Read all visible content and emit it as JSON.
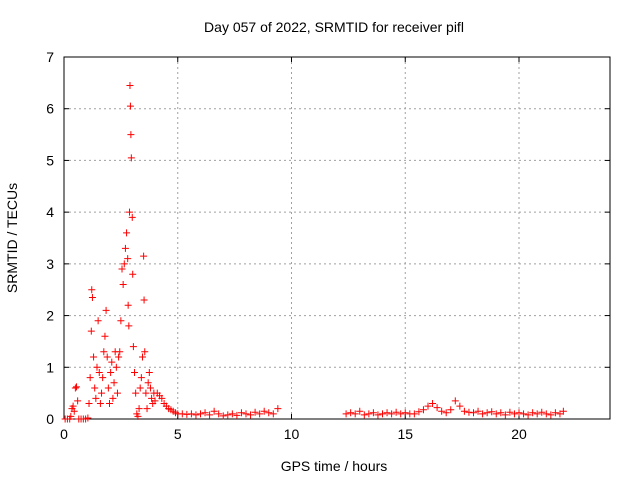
{
  "chart_data": {
    "type": "scatter",
    "title": "Day 057 of 2022, SRMTID for receiver pifl",
    "xlabel": "GPS time / hours",
    "ylabel": "SRMTID / TECUs",
    "xlim": [
      0,
      24
    ],
    "ylim": [
      0,
      7
    ],
    "xticks": [
      0,
      5,
      10,
      15,
      20
    ],
    "yticks": [
      0,
      1,
      2,
      3,
      4,
      5,
      6,
      7
    ],
    "grid": true,
    "marker": "+",
    "color": "#ff0000",
    "series": [
      {
        "name": "SRMTID",
        "points": [
          [
            0.05,
            0.0
          ],
          [
            0.15,
            0.0
          ],
          [
            0.25,
            0.0
          ],
          [
            0.3,
            0.05
          ],
          [
            0.35,
            0.2
          ],
          [
            0.4,
            0.25
          ],
          [
            0.45,
            0.15
          ],
          [
            0.5,
            0.6
          ],
          [
            0.55,
            0.62
          ],
          [
            0.6,
            0.35
          ],
          [
            0.65,
            0.0
          ],
          [
            0.75,
            0.0
          ],
          [
            0.85,
            0.0
          ],
          [
            0.95,
            0.0
          ],
          [
            1.05,
            0.02
          ],
          [
            1.1,
            0.3
          ],
          [
            1.15,
            0.8
          ],
          [
            1.2,
            1.7
          ],
          [
            1.22,
            2.5
          ],
          [
            1.25,
            2.35
          ],
          [
            1.3,
            1.2
          ],
          [
            1.35,
            0.6
          ],
          [
            1.4,
            0.4
          ],
          [
            1.45,
            1.0
          ],
          [
            1.5,
            1.9
          ],
          [
            1.55,
            0.9
          ],
          [
            1.6,
            0.3
          ],
          [
            1.65,
            0.5
          ],
          [
            1.7,
            0.8
          ],
          [
            1.75,
            1.3
          ],
          [
            1.8,
            1.6
          ],
          [
            1.85,
            2.1
          ],
          [
            1.9,
            1.2
          ],
          [
            1.95,
            0.6
          ],
          [
            2.0,
            0.3
          ],
          [
            2.05,
            0.9
          ],
          [
            2.1,
            1.1
          ],
          [
            2.15,
            0.4
          ],
          [
            2.2,
            0.7
          ],
          [
            2.25,
            1.3
          ],
          [
            2.3,
            1.0
          ],
          [
            2.35,
            0.5
          ],
          [
            2.4,
            1.2
          ],
          [
            2.45,
            1.3
          ],
          [
            2.5,
            1.9
          ],
          [
            2.55,
            2.9
          ],
          [
            2.6,
            2.6
          ],
          [
            2.65,
            3.0
          ],
          [
            2.7,
            3.3
          ],
          [
            2.75,
            3.6
          ],
          [
            2.8,
            3.1
          ],
          [
            2.82,
            2.2
          ],
          [
            2.85,
            1.8
          ],
          [
            2.88,
            4.0
          ],
          [
            2.9,
            6.45
          ],
          [
            2.92,
            6.05
          ],
          [
            2.94,
            5.5
          ],
          [
            2.96,
            5.05
          ],
          [
            3.0,
            3.9
          ],
          [
            3.02,
            2.8
          ],
          [
            3.05,
            1.4
          ],
          [
            3.1,
            0.9
          ],
          [
            3.15,
            0.5
          ],
          [
            3.2,
            0.1
          ],
          [
            3.25,
            0.05
          ],
          [
            3.3,
            0.2
          ],
          [
            3.35,
            0.6
          ],
          [
            3.4,
            0.8
          ],
          [
            3.45,
            1.2
          ],
          [
            3.5,
            3.15
          ],
          [
            3.52,
            2.3
          ],
          [
            3.55,
            1.3
          ],
          [
            3.6,
            0.5
          ],
          [
            3.65,
            0.2
          ],
          [
            3.7,
            0.7
          ],
          [
            3.75,
            0.9
          ],
          [
            3.8,
            0.6
          ],
          [
            3.85,
            0.4
          ],
          [
            3.9,
            0.3
          ],
          [
            3.95,
            0.5
          ],
          [
            4.0,
            0.35
          ],
          [
            4.1,
            0.5
          ],
          [
            4.2,
            0.45
          ],
          [
            4.3,
            0.4
          ],
          [
            4.4,
            0.3
          ],
          [
            4.5,
            0.25
          ],
          [
            4.6,
            0.2
          ],
          [
            4.7,
            0.18
          ],
          [
            4.8,
            0.15
          ],
          [
            4.9,
            0.12
          ],
          [
            5.0,
            0.1
          ],
          [
            5.2,
            0.1
          ],
          [
            5.4,
            0.09
          ],
          [
            5.6,
            0.1
          ],
          [
            5.8,
            0.08
          ],
          [
            6.0,
            0.1
          ],
          [
            6.2,
            0.12
          ],
          [
            6.4,
            0.08
          ],
          [
            6.6,
            0.15
          ],
          [
            6.8,
            0.1
          ],
          [
            7.0,
            0.06
          ],
          [
            7.2,
            0.08
          ],
          [
            7.4,
            0.1
          ],
          [
            7.6,
            0.07
          ],
          [
            7.8,
            0.12
          ],
          [
            8.0,
            0.1
          ],
          [
            8.2,
            0.08
          ],
          [
            8.4,
            0.13
          ],
          [
            8.6,
            0.1
          ],
          [
            8.8,
            0.15
          ],
          [
            9.0,
            0.12
          ],
          [
            9.2,
            0.1
          ],
          [
            9.4,
            0.2
          ],
          [
            12.4,
            0.1
          ],
          [
            12.6,
            0.12
          ],
          [
            12.8,
            0.1
          ],
          [
            13.0,
            0.15
          ],
          [
            13.2,
            0.08
          ],
          [
            13.4,
            0.1
          ],
          [
            13.6,
            0.12
          ],
          [
            13.8,
            0.08
          ],
          [
            14.0,
            0.1
          ],
          [
            14.2,
            0.12
          ],
          [
            14.4,
            0.1
          ],
          [
            14.6,
            0.13
          ],
          [
            14.8,
            0.1
          ],
          [
            15.0,
            0.12
          ],
          [
            15.2,
            0.1
          ],
          [
            15.4,
            0.1
          ],
          [
            15.6,
            0.14
          ],
          [
            15.8,
            0.18
          ],
          [
            16.0,
            0.25
          ],
          [
            16.2,
            0.3
          ],
          [
            16.4,
            0.22
          ],
          [
            16.6,
            0.15
          ],
          [
            16.8,
            0.12
          ],
          [
            17.0,
            0.18
          ],
          [
            17.2,
            0.35
          ],
          [
            17.4,
            0.25
          ],
          [
            17.6,
            0.15
          ],
          [
            17.8,
            0.13
          ],
          [
            18.0,
            0.12
          ],
          [
            18.2,
            0.15
          ],
          [
            18.4,
            0.1
          ],
          [
            18.6,
            0.12
          ],
          [
            18.8,
            0.14
          ],
          [
            19.0,
            0.1
          ],
          [
            19.2,
            0.12
          ],
          [
            19.4,
            0.08
          ],
          [
            19.6,
            0.13
          ],
          [
            19.8,
            0.1
          ],
          [
            20.0,
            0.12
          ],
          [
            20.2,
            0.1
          ],
          [
            20.4,
            0.08
          ],
          [
            20.6,
            0.12
          ],
          [
            20.8,
            0.1
          ],
          [
            21.0,
            0.13
          ],
          [
            21.2,
            0.1
          ],
          [
            21.4,
            0.08
          ],
          [
            21.6,
            0.12
          ],
          [
            21.8,
            0.1
          ],
          [
            21.95,
            0.15
          ]
        ]
      }
    ]
  }
}
